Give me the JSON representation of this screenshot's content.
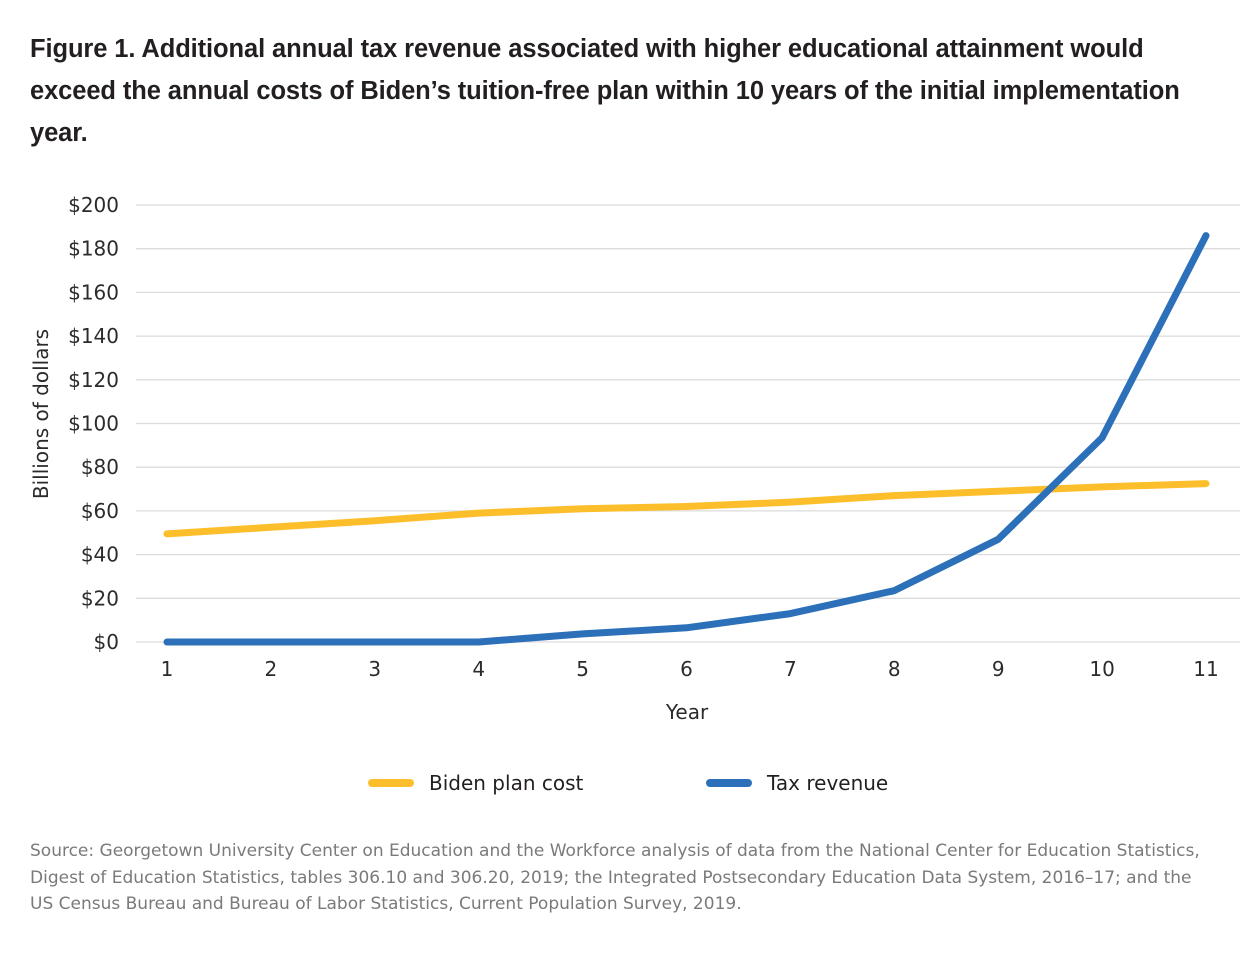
{
  "title": "Figure 1. Additional annual tax revenue associated with higher educational attainment would exceed the annual costs of Biden’s tuition-free plan within 10 years of the initial implementation year.",
  "source": "Source: Georgetown University Center on Education and the Workforce analysis of data from the National Center for Education Statistics, Digest of Education Statistics, tables 306.10 and 306.20, 2019; the Integrated Postsecondary Education Data System, 2016–17; and the US Census Bureau and Bureau of Labor Statistics, Current Population Survey, 2019.",
  "chart_data": {
    "type": "line",
    "title": "Figure 1. Additional annual tax revenue associated with higher educational attainment would exceed the annual costs of Biden’s tuition-free plan within 10 years of the initial implementation year.",
    "xlabel": "Year",
    "ylabel": "Billions of dollars",
    "x": [
      1,
      2,
      3,
      4,
      5,
      6,
      7,
      8,
      9,
      10,
      11
    ],
    "x_tick_labels": [
      "1",
      "2",
      "3",
      "4",
      "5",
      "6",
      "7",
      "8",
      "9",
      "10",
      "11"
    ],
    "y_tick_labels": [
      "$0",
      "$20",
      "$40",
      "$60",
      "$80",
      "$100",
      "$120",
      "$140",
      "$160",
      "$180",
      "$200"
    ],
    "y_ticks": [
      0,
      20,
      40,
      60,
      80,
      100,
      120,
      140,
      160,
      180,
      200
    ],
    "ylim": [
      0,
      200
    ],
    "xlim": [
      1,
      11
    ],
    "grid": "horizontal",
    "legend_position": "bottom",
    "series": [
      {
        "name": "Biden plan cost",
        "color": "#fcbf2b",
        "values": [
          49.5,
          52.5,
          55.5,
          59,
          61,
          62,
          64,
          67,
          69,
          71,
          72.5
        ]
      },
      {
        "name": "Tax revenue",
        "color": "#2b70b8",
        "values": [
          0,
          0,
          0,
          0,
          3.7,
          6.5,
          13,
          23.5,
          47,
          93.5,
          186
        ]
      }
    ]
  }
}
